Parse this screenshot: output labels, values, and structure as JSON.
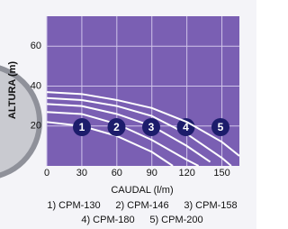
{
  "chart_data": {
    "type": "line",
    "x_label": "CAUDAL (l/m)",
    "y_label": "ALTURA (m)",
    "xlim": [
      0,
      165
    ],
    "ylim": [
      0,
      75
    ],
    "xticks": [
      0,
      30,
      60,
      90,
      120,
      150
    ],
    "yticks": [
      20,
      40,
      60
    ],
    "grid": true,
    "plot_color": "#7a5fb3",
    "line_color": "#ffffff",
    "marker_color": "#1c1c6b",
    "series": [
      {
        "name": "1) CPM-130",
        "label": "1",
        "x": [
          0,
          30,
          60,
          90,
          108
        ],
        "values": [
          22,
          20,
          15,
          7,
          0
        ]
      },
      {
        "name": "2) CPM-146",
        "label": "2",
        "x": [
          0,
          30,
          60,
          90,
          120,
          130
        ],
        "values": [
          27,
          26,
          21,
          13,
          3,
          0
        ]
      },
      {
        "name": "3) CPM-158",
        "label": "3",
        "x": [
          0,
          30,
          60,
          90,
          120,
          140
        ],
        "values": [
          31,
          30,
          26,
          20,
          10,
          2
        ]
      },
      {
        "name": "4) CPM-180",
        "label": "4",
        "x": [
          0,
          30,
          60,
          90,
          120,
          150,
          158
        ],
        "values": [
          34,
          33,
          30,
          25,
          16,
          4,
          0
        ]
      },
      {
        "name": "5) CPM-200",
        "label": "5",
        "x": [
          0,
          30,
          60,
          90,
          120,
          150,
          165
        ],
        "values": [
          37,
          36,
          33,
          29,
          22,
          12,
          5
        ]
      }
    ]
  }
}
